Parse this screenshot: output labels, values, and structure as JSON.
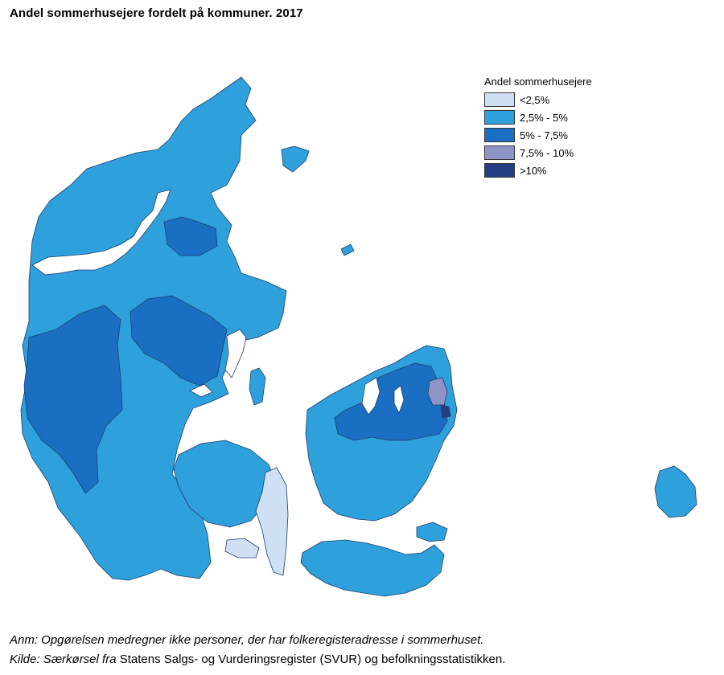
{
  "title": "Andel sommerhusejere fordelt på kommuner. 2017",
  "legend": {
    "title": "Andel sommerhusejere",
    "items": [
      {
        "label": "<2,5%",
        "color": "#cfe0f5"
      },
      {
        "label": "2,5% - 5%",
        "color": "#2ea0dc"
      },
      {
        "label": "5% - 7,5%",
        "color": "#1a6fc2"
      },
      {
        "label": "7,5% - 10%",
        "color": "#8f94c6"
      },
      {
        "label": ">10%",
        "color": "#253d82"
      }
    ]
  },
  "notes": {
    "anm": "Anm: Opgørelsen medregner ikke personer, der har folkeregisteradresse i sommerhuset.",
    "kilde_prefix": "Kilde: Særkørsel fra",
    "kilde_rest": " Statens Salgs- og Vurderingsregister (SVUR) og befolkningsstatistikken."
  }
}
